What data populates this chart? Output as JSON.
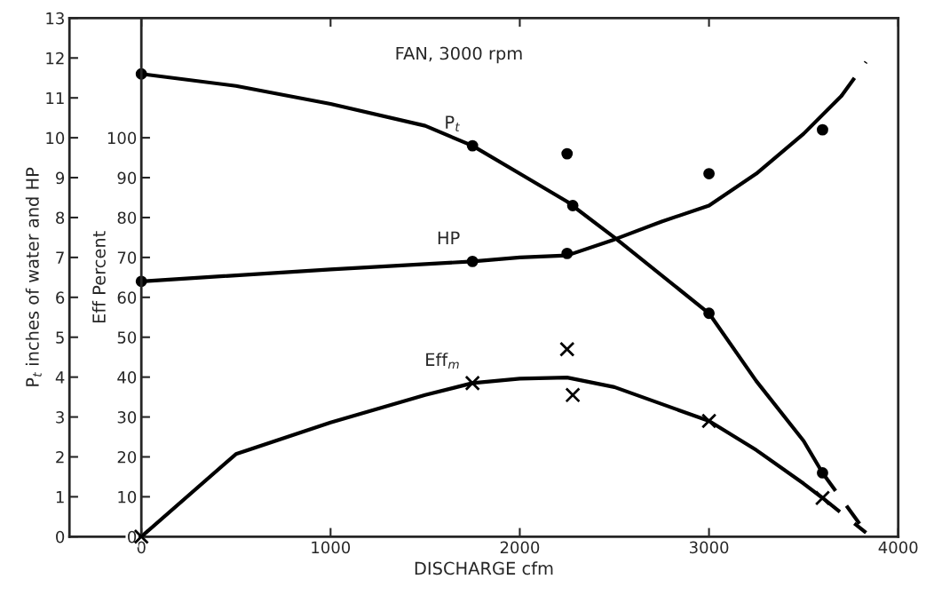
{
  "chart_data": {
    "type": "line",
    "title": "FAN, 3000 rpm",
    "xlabel": "DISCHARGE cfm",
    "ylabel": "P$_{t}$ inches of water and HP",
    "y2label": "Eff Percent",
    "xlim": [
      -380,
      4000
    ],
    "xticks": [
      0,
      1000,
      2000,
      3000,
      4000
    ],
    "ylim": [
      0,
      13
    ],
    "yticks": [
      0,
      1,
      2,
      3,
      4,
      5,
      6,
      7,
      8,
      9,
      10,
      11,
      12,
      13
    ],
    "y2lim": [
      0,
      130
    ],
    "y2ticks": [
      0,
      10,
      20,
      30,
      40,
      50,
      60,
      70,
      80,
      90,
      100
    ],
    "grid": false,
    "legend": false,
    "series": [
      {
        "name": "P$_{t}$",
        "color": "#000000",
        "marker": "none",
        "line_style": "solid",
        "x": [
          0,
          500,
          1000,
          1500,
          1750,
          2000,
          2250,
          2500,
          3000,
          3250,
          3500,
          3600
        ],
        "values": [
          11.6,
          11.3,
          10.85,
          10.3,
          9.8,
          9.1,
          8.4,
          7.5,
          5.6,
          3.9,
          2.4,
          1.6
        ]
      },
      {
        "color": "#000000",
        "marker": "none",
        "line_style": "dashed",
        "x": [
          3600,
          3830
        ],
        "values": [
          1.6,
          0.1
        ]
      },
      {
        "type": "scatter",
        "color": "#000000",
        "marker": "circle",
        "x": [
          0,
          1750,
          2250,
          2280,
          3000,
          3600
        ],
        "values": [
          11.6,
          9.8,
          9.6,
          8.3,
          5.6,
          1.6
        ]
      },
      {
        "name": "HP",
        "color": "#000000",
        "marker": "none",
        "line_style": "solid",
        "x": [
          0,
          1000,
          1750,
          2000,
          2250,
          2500,
          2750,
          3000,
          3250,
          3500,
          3700
        ],
        "values": [
          6.4,
          6.7,
          6.9,
          7.0,
          7.05,
          7.45,
          7.9,
          8.3,
          9.1,
          10.1,
          11.05
        ]
      },
      {
        "color": "#000000",
        "marker": "none",
        "line_style": "dashed",
        "x": [
          3700,
          3830
        ],
        "values": [
          11.05,
          11.9
        ]
      },
      {
        "type": "scatter",
        "color": "#000000",
        "marker": "circle",
        "x": [
          0,
          1750,
          2250,
          3000,
          3600
        ],
        "values": [
          6.4,
          6.9,
          7.1,
          9.1,
          10.2
        ]
      },
      {
        "name": "Eff$_{m}$",
        "axis": "y2",
        "color": "#000000",
        "marker": "none",
        "line_style": "solid",
        "x": [
          0,
          500,
          1000,
          1500,
          1750,
          2000,
          2250,
          2500,
          3000,
          3250,
          3500,
          3600
        ],
        "values": [
          0,
          20.7,
          28.6,
          35.5,
          38.5,
          39.6,
          39.9,
          37.5,
          29,
          21.7,
          13.3,
          9.7
        ]
      },
      {
        "axis": "y2",
        "color": "#000000",
        "marker": "none",
        "line_style": "dashed",
        "x": [
          3600,
          3830
        ],
        "values": [
          9.7,
          1
        ]
      },
      {
        "type": "scatter",
        "axis": "y2",
        "color": "#000000",
        "marker": "cross",
        "x": [
          0,
          1750,
          2250,
          2280,
          3000,
          3600
        ],
        "values": [
          0,
          38.5,
          47,
          35.5,
          29,
          9.7
        ]
      }
    ]
  }
}
